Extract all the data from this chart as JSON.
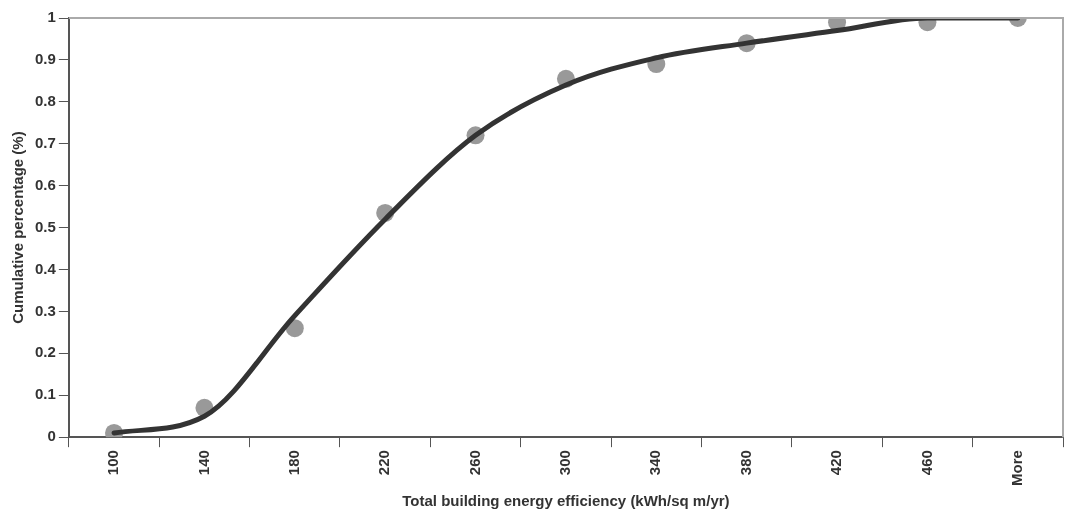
{
  "chart_data": {
    "type": "line",
    "xlabel": "Total building energy efficiency (kWh/sq m/yr)",
    "ylabel": "Cumulative percentage (%)",
    "categories": [
      "100",
      "140",
      "180",
      "220",
      "260",
      "300",
      "340",
      "380",
      "420",
      "460",
      "More"
    ],
    "series": [
      {
        "type": "scatter",
        "color": "#999999",
        "marker": "circle",
        "values": [
          0.01,
          0.07,
          0.26,
          0.535,
          0.72,
          0.855,
          0.89,
          0.94,
          0.99,
          0.99,
          1.0
        ]
      },
      {
        "color": "#333333",
        "marker": "none",
        "line_style": "solid",
        "values": [
          0.01,
          0.05,
          0.29,
          0.52,
          0.72,
          0.84,
          0.905,
          0.94,
          0.97,
          1.0,
          1.0
        ]
      }
    ],
    "ylim": [
      0,
      1
    ],
    "yticks": [
      0,
      0.1,
      0.2,
      0.3,
      0.4,
      0.5,
      0.6,
      0.7,
      0.8,
      0.9,
      1
    ],
    "grid": false,
    "legend": false
  }
}
